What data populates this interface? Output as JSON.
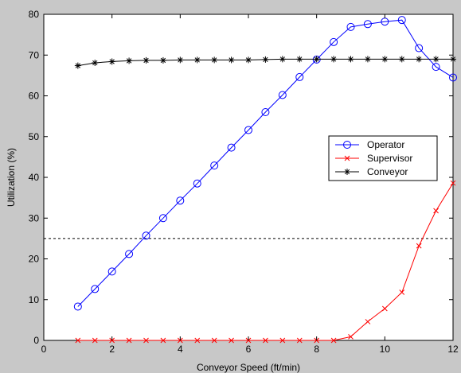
{
  "chart_data": {
    "type": "line",
    "title": "",
    "xlabel": "Conveyor Speed (ft/min)",
    "ylabel": "Utilization (%)",
    "xlim": [
      0,
      12
    ],
    "ylim": [
      0,
      80
    ],
    "xticks": [
      0,
      2,
      4,
      6,
      8,
      10,
      12
    ],
    "yticks": [
      0,
      10,
      20,
      30,
      40,
      50,
      60,
      70,
      80
    ],
    "grid": false,
    "legend_position": "right",
    "x": [
      1,
      1.5,
      2,
      2.5,
      3,
      3.5,
      4,
      4.5,
      5,
      5.5,
      6,
      6.5,
      7,
      7.5,
      8,
      8.5,
      9,
      9.5,
      10,
      10.5,
      11,
      11.5,
      12
    ],
    "series": [
      {
        "name": "Operator",
        "color": "#0000ff",
        "marker": "circle",
        "values": [
          8.3,
          12.6,
          16.9,
          21.2,
          25.7,
          30.0,
          34.3,
          38.5,
          42.9,
          47.3,
          51.6,
          56.0,
          60.2,
          64.6,
          68.9,
          73.2,
          76.9,
          77.6,
          78.2,
          78.6,
          71.7,
          67.1,
          64.5
        ]
      },
      {
        "name": "Supervisor",
        "color": "#ff0000",
        "marker": "x",
        "values": [
          0,
          0,
          0,
          0,
          0,
          0,
          0,
          0,
          0,
          0,
          0,
          0,
          0,
          0,
          0,
          0,
          0.9,
          4.6,
          7.8,
          11.8,
          23.2,
          31.8,
          38.6
        ]
      },
      {
        "name": "Conveyor",
        "color": "#000000",
        "marker": "asterisk",
        "values": [
          67.4,
          68.1,
          68.4,
          68.6,
          68.7,
          68.7,
          68.8,
          68.8,
          68.8,
          68.8,
          68.8,
          68.9,
          69.0,
          69.0,
          69.0,
          69.0,
          69.0,
          69.0,
          69.0,
          69.0,
          69.0,
          69.0,
          69.0
        ]
      }
    ],
    "reference_line": {
      "y": 25,
      "style": "dashed",
      "color": "#000000"
    }
  }
}
